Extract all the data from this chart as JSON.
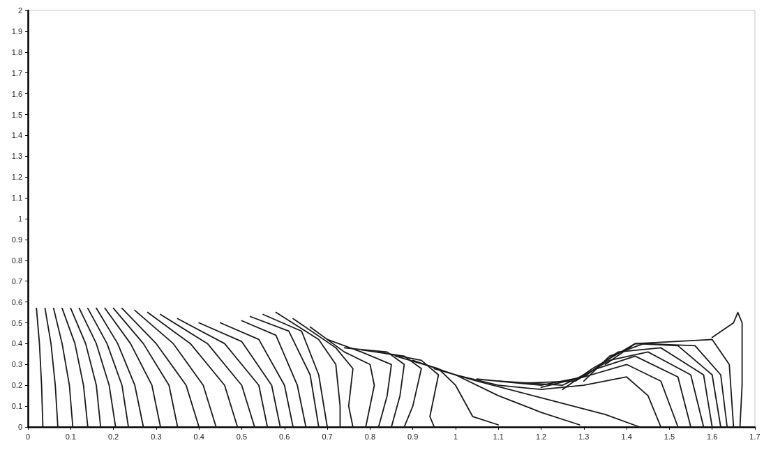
{
  "chart_data": {
    "type": "line",
    "marker": "none",
    "xlim": [
      0,
      1.7
    ],
    "xticks": [
      0,
      0.1,
      0.2,
      0.3,
      0.4,
      0.5,
      0.6,
      0.7,
      0.8,
      0.9,
      1,
      1.1,
      1.2,
      1.3,
      1.4,
      1.5,
      1.6,
      1.7
    ],
    "ylim": [
      0,
      2
    ],
    "yticks": [
      0,
      0.1,
      0.2,
      0.3,
      0.4,
      0.5,
      0.6,
      0.7,
      0.8,
      0.9,
      1,
      1.1,
      1.2,
      1.3,
      1.4,
      1.5,
      1.6,
      1.7,
      1.8,
      1.9,
      2
    ],
    "series": [
      {
        "color": "#1a1a1a",
        "x": [
          0.02,
          0.027,
          0.032,
          0.035
        ],
        "values": [
          0.57,
          0.4,
          0.2,
          0
        ]
      },
      {
        "color": "#1a1a1a",
        "x": [
          0.04,
          0.054,
          0.064,
          0.07
        ],
        "values": [
          0.57,
          0.4,
          0.2,
          0
        ]
      },
      {
        "color": "#1a1a1a",
        "x": [
          0.06,
          0.08,
          0.097,
          0.105
        ],
        "values": [
          0.57,
          0.4,
          0.2,
          0
        ]
      },
      {
        "color": "#1a1a1a",
        "x": [
          0.08,
          0.11,
          0.13,
          0.14
        ],
        "values": [
          0.57,
          0.4,
          0.2,
          0
        ]
      },
      {
        "color": "#1a1a1a",
        "x": [
          0.1,
          0.135,
          0.16,
          0.17
        ],
        "values": [
          0.57,
          0.4,
          0.2,
          0
        ]
      },
      {
        "color": "#1a1a1a",
        "x": [
          0.12,
          0.16,
          0.19,
          0.205
        ],
        "values": [
          0.57,
          0.4,
          0.2,
          0
        ]
      },
      {
        "color": "#1a1a1a",
        "x": [
          0.14,
          0.185,
          0.22,
          0.235
        ],
        "values": [
          0.57,
          0.4,
          0.2,
          0
        ]
      },
      {
        "color": "#1a1a1a",
        "x": [
          0.16,
          0.21,
          0.25,
          0.27
        ],
        "values": [
          0.57,
          0.4,
          0.2,
          0
        ]
      },
      {
        "color": "#1a1a1a",
        "x": [
          0.18,
          0.24,
          0.29,
          0.31
        ],
        "values": [
          0.57,
          0.4,
          0.2,
          0
        ]
      },
      {
        "color": "#1a1a1a",
        "x": [
          0.2,
          0.27,
          0.33,
          0.35
        ],
        "values": [
          0.57,
          0.4,
          0.2,
          0
        ]
      },
      {
        "color": "#1a1a1a",
        "x": [
          0.22,
          0.3,
          0.37,
          0.4
        ],
        "values": [
          0.57,
          0.4,
          0.2,
          0
        ]
      },
      {
        "color": "#1a1a1a",
        "x": [
          0.25,
          0.34,
          0.41,
          0.44
        ],
        "values": [
          0.56,
          0.4,
          0.2,
          0
        ]
      },
      {
        "color": "#1a1a1a",
        "x": [
          0.28,
          0.38,
          0.46,
          0.49
        ],
        "values": [
          0.55,
          0.4,
          0.2,
          0
        ]
      },
      {
        "color": "#1a1a1a",
        "x": [
          0.31,
          0.42,
          0.5,
          0.53
        ],
        "values": [
          0.54,
          0.4,
          0.2,
          0
        ]
      },
      {
        "color": "#1a1a1a",
        "x": [
          0.35,
          0.46,
          0.54,
          0.56
        ],
        "values": [
          0.52,
          0.4,
          0.2,
          0
        ]
      },
      {
        "color": "#1a1a1a",
        "x": [
          0.4,
          0.5,
          0.57,
          0.59
        ],
        "values": [
          0.5,
          0.41,
          0.2,
          0
        ]
      },
      {
        "color": "#1a1a1a",
        "x": [
          0.45,
          0.54,
          0.6,
          0.62
        ],
        "values": [
          0.5,
          0.42,
          0.2,
          0
        ]
      },
      {
        "color": "#1a1a1a",
        "x": [
          0.5,
          0.58,
          0.63,
          0.65
        ],
        "values": [
          0.51,
          0.44,
          0.2,
          0
        ]
      },
      {
        "color": "#1a1a1a",
        "x": [
          0.52,
          0.61,
          0.66,
          0.68
        ],
        "values": [
          0.53,
          0.46,
          0.25,
          0
        ]
      },
      {
        "color": "#1a1a1a",
        "x": [
          0.55,
          0.64,
          0.68,
          0.7
        ],
        "values": [
          0.54,
          0.46,
          0.25,
          0
        ]
      },
      {
        "color": "#1a1a1a",
        "x": [
          0.58,
          0.68,
          0.72,
          0.73,
          0.73
        ],
        "values": [
          0.55,
          0.42,
          0.3,
          0.1,
          0
        ]
      },
      {
        "color": "#1a1a1a",
        "x": [
          0.62,
          0.72,
          0.76,
          0.75,
          0.76
        ],
        "values": [
          0.52,
          0.38,
          0.28,
          0.1,
          0
        ]
      },
      {
        "color": "#1a1a1a",
        "x": [
          0.66,
          0.74,
          0.8,
          0.81,
          0.79
        ],
        "values": [
          0.48,
          0.36,
          0.3,
          0.2,
          0
        ]
      },
      {
        "color": "#1a1a1a",
        "x": [
          0.7,
          0.78,
          0.85,
          0.84,
          0.82
        ],
        "values": [
          0.42,
          0.36,
          0.3,
          0.15,
          0
        ]
      },
      {
        "color": "#1a1a1a",
        "x": [
          0.74,
          0.84,
          0.88,
          0.87,
          0.85
        ],
        "values": [
          0.38,
          0.36,
          0.3,
          0.15,
          0
        ]
      },
      {
        "color": "#1a1a1a",
        "x": [
          0.78,
          0.88,
          0.92,
          0.9,
          0.88
        ],
        "values": [
          0.37,
          0.34,
          0.28,
          0.1,
          0
        ]
      },
      {
        "color": "#1a1a1a",
        "x": [
          0.82,
          0.92,
          0.96,
          0.94,
          0.95
        ],
        "values": [
          0.36,
          0.32,
          0.25,
          0.05,
          0
        ]
      },
      {
        "color": "#1a1a1a",
        "x": [
          0.86,
          0.96,
          1,
          1.04,
          1.1
        ],
        "values": [
          0.34,
          0.28,
          0.2,
          0.05,
          0.01
        ]
      },
      {
        "color": "#1a1a1a",
        "x": [
          0.9,
          1,
          1.1,
          1.2,
          1.29
        ],
        "values": [
          0.32,
          0.25,
          0.15,
          0.07,
          0.01
        ]
      },
      {
        "color": "#1a1a1a",
        "x": [
          0.95,
          1.05,
          1.2,
          1.35,
          1.43
        ],
        "values": [
          0.28,
          0.22,
          0.14,
          0.06,
          0
        ]
      },
      {
        "color": "#1a1a1a",
        "x": [
          1,
          1.1,
          1.2,
          1.3,
          1.4,
          1.45,
          1.48
        ],
        "values": [
          0.25,
          0.2,
          0.18,
          0.2,
          0.24,
          0.15,
          0
        ]
      },
      {
        "color": "#1a1a1a",
        "x": [
          1.05,
          1.2,
          1.3,
          1.4,
          1.48,
          1.52
        ],
        "values": [
          0.23,
          0.2,
          0.24,
          0.3,
          0.22,
          0
        ]
      },
      {
        "color": "#1a1a1a",
        "x": [
          1.1,
          1.25,
          1.33,
          1.42,
          1.52,
          1.55
        ],
        "values": [
          0.22,
          0.2,
          0.28,
          0.34,
          0.24,
          0
        ]
      },
      {
        "color": "#1a1a1a",
        "x": [
          1.15,
          1.28,
          1.36,
          1.45,
          1.55,
          1.58
        ],
        "values": [
          0.21,
          0.22,
          0.32,
          0.36,
          0.25,
          0
        ]
      },
      {
        "color": "#1a1a1a",
        "x": [
          1.2,
          1.3,
          1.38,
          1.48,
          1.58,
          1.6
        ],
        "values": [
          0.19,
          0.24,
          0.36,
          0.38,
          0.25,
          0
        ]
      },
      {
        "color": "#1a1a1a",
        "x": [
          1.25,
          1.32,
          1.42,
          1.52,
          1.6,
          1.62
        ],
        "values": [
          0.18,
          0.28,
          0.4,
          0.39,
          0.25,
          0
        ]
      },
      {
        "color": "#1a1a1a",
        "x": [
          1.3,
          1.36,
          1.44,
          1.56,
          1.62,
          1.635
        ],
        "values": [
          0.22,
          0.34,
          0.4,
          0.39,
          0.25,
          0
        ]
      },
      {
        "color": "#1a1a1a",
        "x": [
          1.35,
          1.42,
          1.6,
          1.64,
          1.65
        ],
        "values": [
          0.3,
          0.4,
          0.42,
          0.3,
          0
        ]
      },
      {
        "color": "#1a1a1a",
        "x": [
          1.6,
          1.65,
          1.66,
          1.67,
          1.67,
          1.665
        ],
        "values": [
          0.43,
          0.5,
          0.55,
          0.5,
          0.2,
          0
        ]
      }
    ]
  }
}
